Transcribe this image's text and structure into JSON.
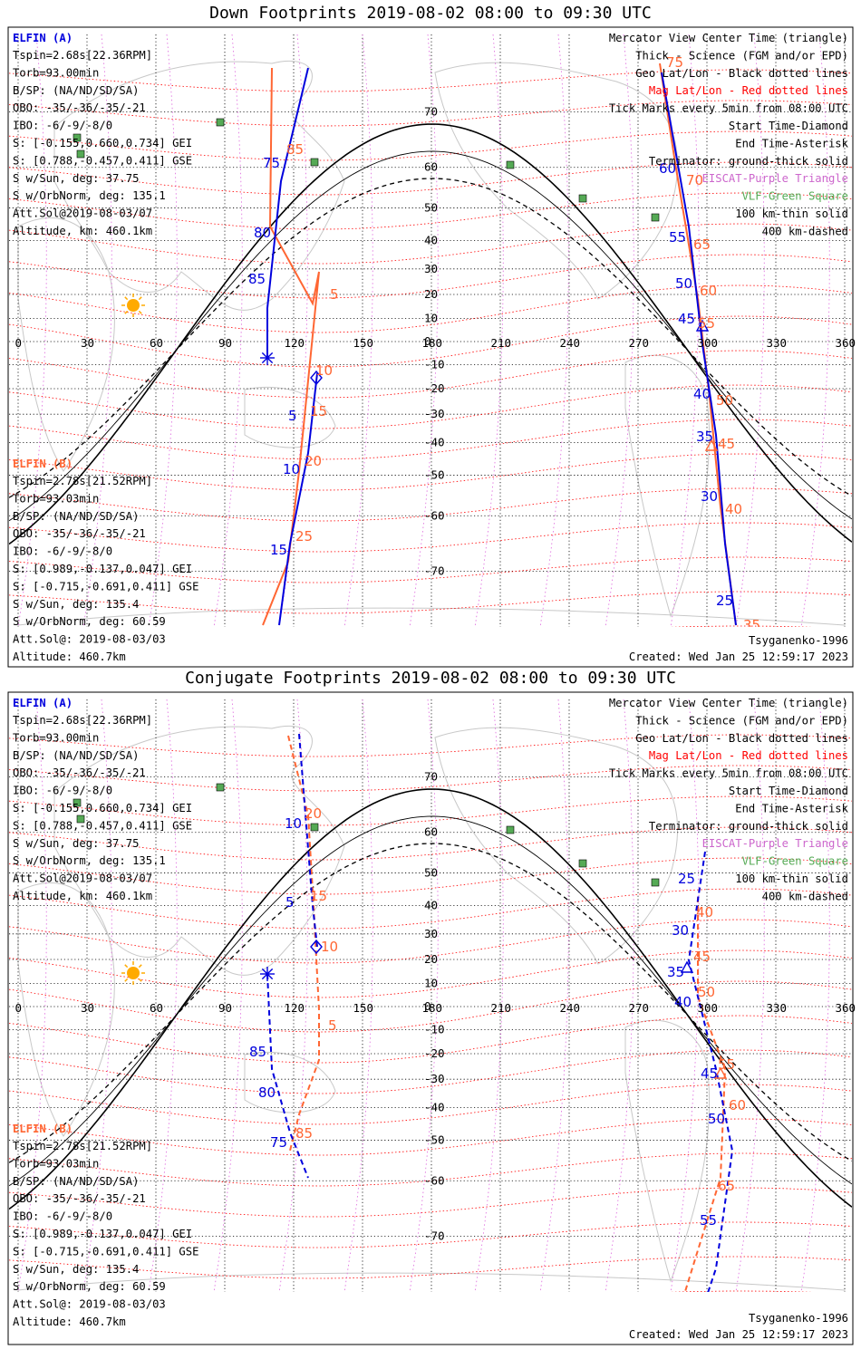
{
  "panels": [
    {
      "title": "Down Footprints 2019-08-02 08:00 to 09:30 UTC",
      "elfin_a": {
        "header": "ELFIN (A)",
        "lines": [
          "Tspin=2.68s[22.36RPM]",
          "Torb=93.00min",
          "B/SP: (NA/ND/SD/SA)",
          "OBO: -35/-36/-35/-21",
          "IBO: -6/-9/-8/0",
          "S: [-0.155,0.660,0.734] GEI",
          "S: [0.788,-0.457,0.411] GSE",
          "S w/Sun, deg: 37.75",
          "S w/OrbNorm, deg: 135.1",
          "Att.Sol@2019-08-03/07",
          "Altitude, km: 460.1km"
        ]
      },
      "elfin_b": {
        "header": "ELFIN (B)",
        "lines": [
          "Tspin=2.78s[21.52RPM]",
          "Torb=93.03min",
          "B/SP: (NA/ND/SD/SA)",
          "OBO: -35/-36/-35/-21",
          "IBO: -6/-9/-8/0",
          "S: [0.989,-0.137,0.047] GEI",
          "S: [-0.715,-0.691,0.411] GSE",
          "S w/Sun, deg: 135.4",
          "S w/OrbNorm, deg: 60.59",
          "Att.Sol@: 2019-08-03/03",
          "Altitude: 460.7km"
        ]
      },
      "legend": [
        {
          "text": "Mercator View Center Time (triangle)",
          "color": "#000000"
        },
        {
          "text": "Thick - Science (FGM and/or EPD)",
          "color": "#000000"
        },
        {
          "text": "Geo Lat/Lon - Black dotted lines",
          "color": "#000000"
        },
        {
          "text": "Mag Lat/Lon - Red dotted lines",
          "color": "#ff0000"
        },
        {
          "text": "Tick Marks every 5min from 08:00 UTC",
          "color": "#000000"
        },
        {
          "text": "Start Time-Diamond",
          "color": "#000000"
        },
        {
          "text": "End Time-Asterisk",
          "color": "#000000"
        },
        {
          "text": "Terminator: ground-thick solid",
          "color": "#000000"
        },
        {
          "text": "EISCAT-Purple Triangle",
          "color": "#cc66cc"
        },
        {
          "text": "VLF-Green Square",
          "color": "#55aa55"
        },
        {
          "text": "100 km-thin solid",
          "color": "#000000"
        },
        {
          "text": "400 km-dashed",
          "color": "#000000"
        }
      ],
      "footer_left": "Tsyganenko-1996",
      "footer_right": "Created: Wed Jan 25 12:59:17 2023",
      "track_a_labels": [
        "75",
        "80",
        "85",
        "5",
        "10",
        "15",
        "60",
        "55",
        "50",
        "45",
        "40",
        "35",
        "30",
        "25"
      ],
      "track_b_labels": [
        "85",
        "5",
        "10",
        "15",
        "20",
        "25",
        "75",
        "70",
        "65",
        "60",
        "55",
        "50",
        "45",
        "40",
        "35"
      ]
    },
    {
      "title": "Conjugate Footprints 2019-08-02 08:00 to 09:30 UTC",
      "elfin_a": {
        "header": "ELFIN (A)",
        "lines": [
          "Tspin=2.68s[22.36RPM]",
          "Torb=93.00min",
          "B/SP: (NA/ND/SD/SA)",
          "OBO: -35/-36/-35/-21",
          "IBO: -6/-9/-8/0",
          "S: [-0.155,0.660,0.734] GEI",
          "S: [0.788,-0.457,0.411] GSE",
          "S w/Sun, deg: 37.75",
          "S w/OrbNorm, deg: 135.1",
          "Att.Sol@2019-08-03/07",
          "Altitude, km: 460.1km"
        ]
      },
      "elfin_b": {
        "header": "ELFIN (B)",
        "lines": [
          "Tspin=2.78s[21.52RPM]",
          "Torb=93.03min",
          "B/SP: (NA/ND/SD/SA)",
          "OBO: -35/-36/-35/-21",
          "IBO: -6/-9/-8/0",
          "S: [0.989,-0.137,0.047] GEI",
          "S: [-0.715,-0.691,0.411] GSE",
          "S w/Sun, deg: 135.4",
          "S w/OrbNorm, deg: 60.59",
          "Att.Sol@: 2019-08-03/03",
          "Altitude: 460.7km"
        ]
      },
      "legend": [
        {
          "text": "Mercator View Center Time (triangle)",
          "color": "#000000"
        },
        {
          "text": "Thick - Science (FGM and/or EPD)",
          "color": "#000000"
        },
        {
          "text": "Geo Lat/Lon - Black dotted lines",
          "color": "#000000"
        },
        {
          "text": "Mag Lat/Lon - Red dotted lines",
          "color": "#ff0000"
        },
        {
          "text": "Tick Marks every 5min from 08:00 UTC",
          "color": "#000000"
        },
        {
          "text": "Start Time-Diamond",
          "color": "#000000"
        },
        {
          "text": "End Time-Asterisk",
          "color": "#000000"
        },
        {
          "text": "Terminator: ground-thick solid",
          "color": "#000000"
        },
        {
          "text": "EISCAT-Purple Triangle",
          "color": "#cc66cc"
        },
        {
          "text": "VLF-Green Square",
          "color": "#55aa55"
        },
        {
          "text": "100 km-thin solid",
          "color": "#000000"
        },
        {
          "text": "400 km-dashed",
          "color": "#000000"
        }
      ],
      "footer_left": "Tsyganenko-1996",
      "footer_right": "Created: Wed Jan 25 12:59:17 2023",
      "track_a_labels": [
        "10",
        "5",
        "85",
        "80",
        "75",
        "25",
        "30",
        "35",
        "40",
        "45",
        "50",
        "55"
      ],
      "track_b_labels": [
        "20",
        "15",
        "10",
        "5",
        "85",
        "40",
        "45",
        "50",
        "55",
        "60",
        "65"
      ]
    }
  ],
  "axes": {
    "lon_ticks": [
      "0",
      "30",
      "60",
      "90",
      "120",
      "150",
      "180",
      "210",
      "240",
      "270",
      "300",
      "330",
      "360"
    ],
    "lat_ticks": [
      "70",
      "60",
      "50",
      "40",
      "30",
      "20",
      "10",
      "0",
      "-10",
      "-20",
      "-30",
      "-40",
      "-50",
      "-60",
      "-70"
    ]
  },
  "colors": {
    "elfin_a": "#0000dd",
    "elfin_b": "#ff6633",
    "mag_grid": "#ff0000",
    "eiscat": "#cc66cc",
    "vlf": "#55aa55",
    "sun": "#ffaa00"
  }
}
